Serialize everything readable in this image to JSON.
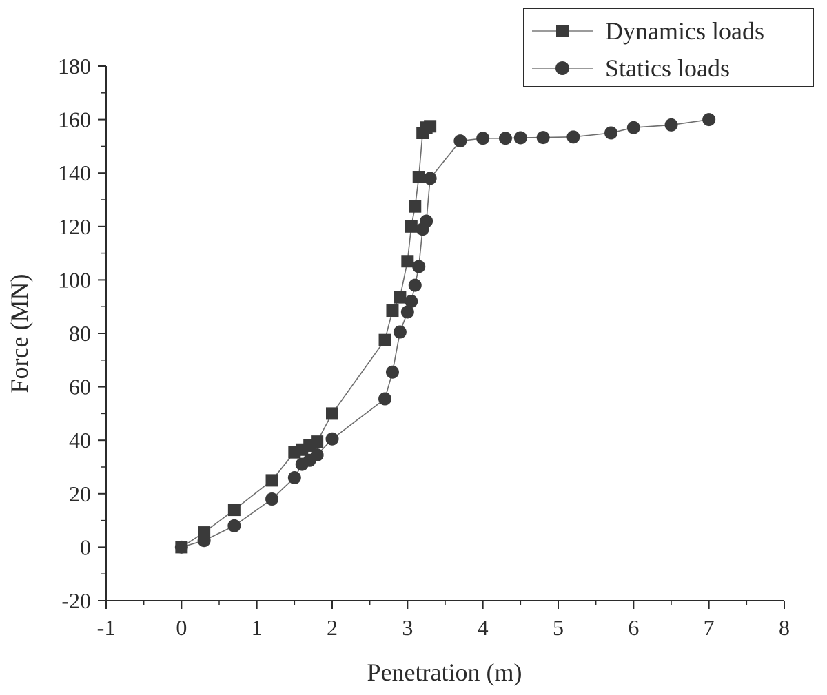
{
  "chart_data": {
    "type": "line",
    "xlabel": "Penetration (m)",
    "ylabel": "Force (MN)",
    "xlim": [
      -1,
      8
    ],
    "ylim": [
      -20,
      180
    ],
    "xticks": [
      -1,
      0,
      1,
      2,
      3,
      4,
      5,
      6,
      7,
      8
    ],
    "yticks": [
      -20,
      0,
      20,
      40,
      60,
      80,
      100,
      120,
      140,
      160,
      180
    ],
    "grid": false,
    "legend_position": "top-right",
    "series": [
      {
        "name": "Dynamics loads",
        "marker": "square",
        "color": "#3a3a3a",
        "x": [
          0,
          0.3,
          0.7,
          1.2,
          1.5,
          1.6,
          1.7,
          1.8,
          2.0,
          2.7,
          2.8,
          2.9,
          3.0,
          3.05,
          3.1,
          3.15,
          3.2,
          3.25,
          3.3
        ],
        "y": [
          0,
          5.5,
          14,
          25,
          35.5,
          36.5,
          38,
          39.5,
          50,
          77.5,
          88.5,
          93.5,
          107,
          120,
          127.5,
          138.5,
          155,
          157,
          157.5
        ]
      },
      {
        "name": "Statics loads",
        "marker": "circle",
        "color": "#3a3a3a",
        "x": [
          0,
          0.3,
          0.7,
          1.2,
          1.5,
          1.6,
          1.7,
          1.8,
          2.0,
          2.7,
          2.8,
          2.9,
          3.0,
          3.05,
          3.1,
          3.15,
          3.2,
          3.25,
          3.3,
          3.7,
          4.0,
          4.3,
          4.5,
          4.8,
          5.2,
          5.7,
          6.0,
          6.5,
          7.0
        ],
        "y": [
          0,
          2.5,
          8,
          18,
          26,
          31,
          32.5,
          34.5,
          40.5,
          55.5,
          65.5,
          80.5,
          88,
          92,
          98,
          105,
          119,
          122,
          138,
          152,
          153,
          153,
          153.2,
          153.3,
          153.5,
          155,
          157,
          158,
          160
        ]
      }
    ]
  }
}
